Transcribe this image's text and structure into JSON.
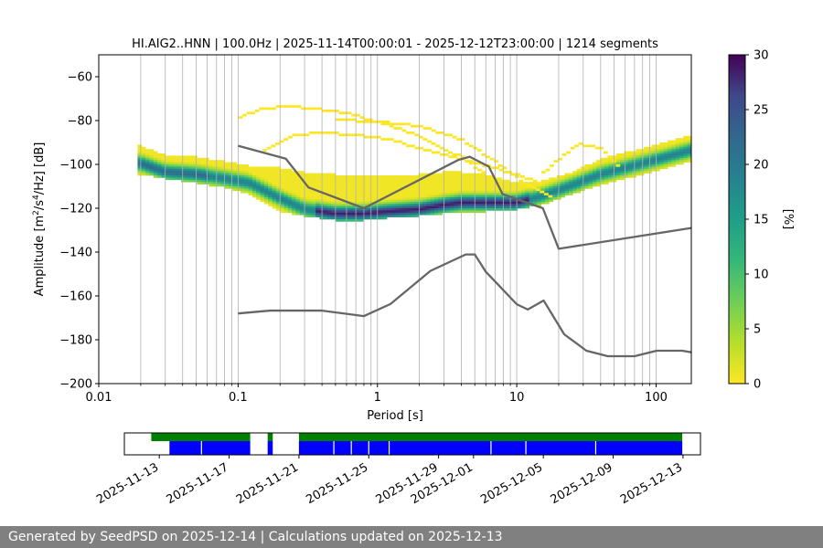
{
  "chart_data": [
    {
      "type": "heatmap",
      "title": "HI.AIG2..HNN | 100.0Hz | 2025-11-14T00:00:01 - 2025-12-12T23:00:00 | 1214 segments",
      "xlabel": "Period [s]",
      "ylabel_parts": [
        "Amplitude [m",
        "2",
        "/s",
        "4",
        "/Hz] [dB]"
      ],
      "x_scale": "log",
      "xlim": [
        0.01,
        179
      ],
      "ylim": [
        -200,
        -50
      ],
      "x_ticks": [
        0.01,
        0.1,
        1,
        10,
        100
      ],
      "x_tick_labels": [
        "0.01",
        "0.1",
        "1",
        "10",
        "100"
      ],
      "y_ticks": [
        -200,
        -180,
        -160,
        -140,
        -120,
        -100,
        -80,
        -60
      ],
      "y_tick_labels": [
        "−200",
        "−180",
        "−160",
        "−140",
        "−120",
        "−100",
        "−80",
        "−60"
      ],
      "grid": "x-major-and-minor",
      "colorbar": {
        "label": "[%]",
        "range": [
          0,
          30
        ],
        "ticks": [
          0,
          5,
          10,
          15,
          20,
          25,
          30
        ],
        "tick_labels": [
          "0",
          "5",
          "10",
          "15",
          "20",
          "25",
          "30"
        ],
        "colormap": "viridis_r"
      },
      "mode_curve": {
        "period": [
          0.02,
          0.03,
          0.05,
          0.08,
          0.12,
          0.2,
          0.3,
          0.5,
          0.8,
          1.2,
          2,
          3,
          4,
          6,
          10,
          15,
          25,
          40,
          70,
          120,
          179
        ],
        "amplitude": [
          -99,
          -103,
          -104,
          -106,
          -108,
          -115,
          -120,
          -122,
          -122,
          -121,
          -120,
          -118,
          -117,
          -117,
          -117,
          -114,
          -109,
          -104,
          -100,
          -96,
          -93
        ]
      },
      "band_low": {
        "period": [
          0.02,
          0.03,
          0.05,
          0.08,
          0.12,
          0.2,
          0.3,
          0.5,
          0.8,
          1.2,
          2,
          3,
          4,
          6,
          10,
          15,
          25,
          40,
          70,
          120,
          179
        ],
        "amplitude": [
          -104,
          -106,
          -108,
          -110,
          -113,
          -121,
          -123,
          -125,
          -125,
          -124,
          -123,
          -122,
          -121,
          -121,
          -120,
          -118,
          -113,
          -109,
          -105,
          -101,
          -98
        ]
      },
      "band_high": {
        "period": [
          0.02,
          0.03,
          0.05,
          0.08,
          0.12,
          0.2,
          0.3,
          0.5,
          0.8,
          1.2,
          2,
          3,
          4,
          6,
          10,
          15,
          25,
          40,
          70,
          120,
          179
        ],
        "amplitude": [
          -91,
          -95,
          -96,
          -98,
          -100,
          -101,
          -103,
          -104,
          -105,
          -105,
          -104,
          -103,
          -103,
          -104,
          -108,
          -107,
          -103,
          -97,
          -93,
          -89,
          -86
        ]
      },
      "sparse_upper_curves": [
        {
          "period": [
            0.1,
            0.15,
            0.22,
            0.35,
            0.6,
            1,
            1.6,
            2.5,
            4,
            6
          ],
          "amplitude": [
            -78,
            -74,
            -73,
            -74,
            -76,
            -80,
            -84,
            -90,
            -96,
            -104
          ]
        },
        {
          "period": [
            0.15,
            0.25,
            0.4,
            0.7,
            1.2,
            2,
            3.5,
            6,
            10,
            15
          ],
          "amplitude": [
            -93,
            -86,
            -85,
            -86,
            -88,
            -92,
            -96,
            -100,
            -104,
            -108
          ]
        },
        {
          "period": [
            0.5,
            1,
            2,
            4,
            7,
            12,
            18
          ],
          "amplitude": [
            -79,
            -80,
            -82,
            -88,
            -98,
            -109,
            -114
          ]
        },
        {
          "period": [
            15,
            20,
            28,
            40,
            55
          ],
          "amplitude": [
            -104,
            -97,
            -90,
            -92,
            -101
          ]
        }
      ],
      "nhnm": {
        "period": [
          0.1,
          0.22,
          0.32,
          0.8,
          3.8,
          4.6,
          6.3,
          7.9,
          15.4,
          20,
          179
        ],
        "amplitude": [
          -91.5,
          -97.4,
          -110.5,
          -120,
          -98,
          -96.5,
          -101,
          -113.5,
          -120,
          -138.5,
          -129
        ]
      },
      "nlnm": {
        "period": [
          0.1,
          0.17,
          0.4,
          0.8,
          1.24,
          2.4,
          4.3,
          5,
          6,
          10,
          12,
          15.6,
          21.9,
          31.6,
          45,
          70,
          101,
          154,
          179
        ],
        "amplitude": [
          -168,
          -166.7,
          -166.7,
          -169.2,
          -163.7,
          -148.6,
          -141.1,
          -141.1,
          -149,
          -163.8,
          -166.2,
          -162.1,
          -177.5,
          -185,
          -187.5,
          -187.5,
          -185,
          -185,
          -185.7
        ]
      }
    },
    {
      "type": "timeline",
      "x_ticks": [
        "2025-11-13",
        "2025-11-17",
        "2025-11-21",
        "2025-11-25",
        "2025-11-29",
        "2025-12-01",
        "2025-12-05",
        "2025-12-09",
        "2025-12-13"
      ],
      "xlim": [
        "2025-11-11",
        "2025-12-14"
      ],
      "green_color": "#008000",
      "blue_color": "#0000ff",
      "green_segments": [
        [
          "2025-11-12T13:00",
          "2025-11-18T05:00"
        ],
        [
          "2025-11-19T05:00",
          "2025-11-19T12:00"
        ],
        [
          "2025-11-21T00:00",
          "2025-12-12T23:00"
        ]
      ],
      "blue_segments": [
        [
          "2025-11-13T14:00",
          "2025-11-18T05:00"
        ],
        [
          "2025-11-19T05:00",
          "2025-11-19T12:00"
        ],
        [
          "2025-11-21T00:00",
          "2025-12-12T23:00"
        ]
      ],
      "gaps": [
        "2025-11-15T10:00",
        "2025-11-23T00:00",
        "2025-11-24T00:00",
        "2025-11-25T00:00",
        "2025-11-26T04:00",
        "2025-12-02T00:00",
        "2025-12-04T00:00",
        "2025-12-08T00:00"
      ]
    }
  ],
  "footer": {
    "text": "Generated by SeedPSD on 2025-12-14 | Calculations updated on 2025-12-13"
  }
}
